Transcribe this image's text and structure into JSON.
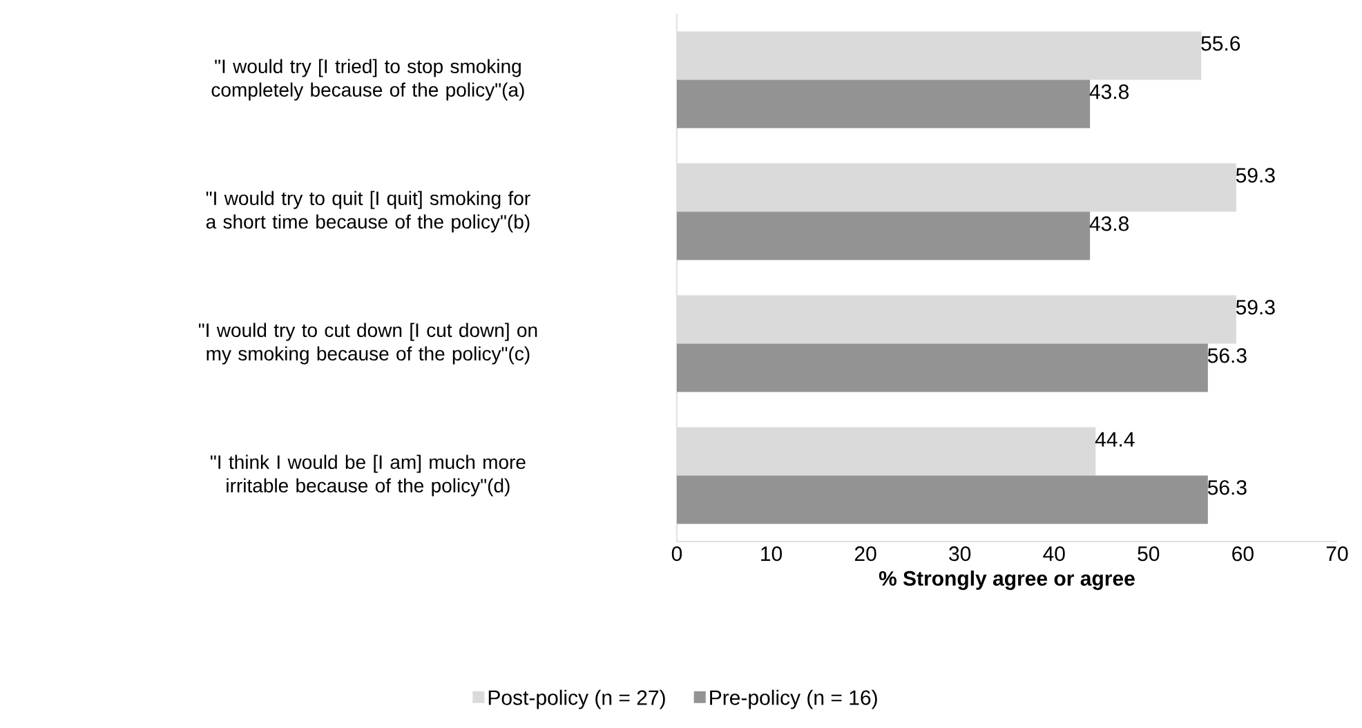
{
  "chart_data": {
    "type": "bar",
    "orientation": "horizontal",
    "categories": [
      "\"I would try [I tried] to stop smoking completely because of the policy\"(a)",
      "\"I would try to quit [I quit] smoking for a short time because of the policy\"(b)",
      "\"I would try to cut down [I cut down] on my smoking because of the policy\"(c)",
      "\"I think I would be [I am] much more irritable because of the policy\"(d)"
    ],
    "series": [
      {
        "name": "Post-policy (n = 27)",
        "color": "#d9dad9",
        "values": [
          55.6,
          59.3,
          59.3,
          44.4
        ]
      },
      {
        "name": "Pre-policy (n = 16)",
        "color": "#939393",
        "values": [
          43.8,
          43.8,
          56.3,
          56.3
        ]
      }
    ],
    "xlabel": "% Strongly agree or agree",
    "xlim": [
      0,
      70
    ],
    "xticks": [
      0,
      10,
      20,
      30,
      40,
      50,
      60,
      70
    ],
    "data_labels": true,
    "grid": false,
    "legend": "bottom"
  }
}
